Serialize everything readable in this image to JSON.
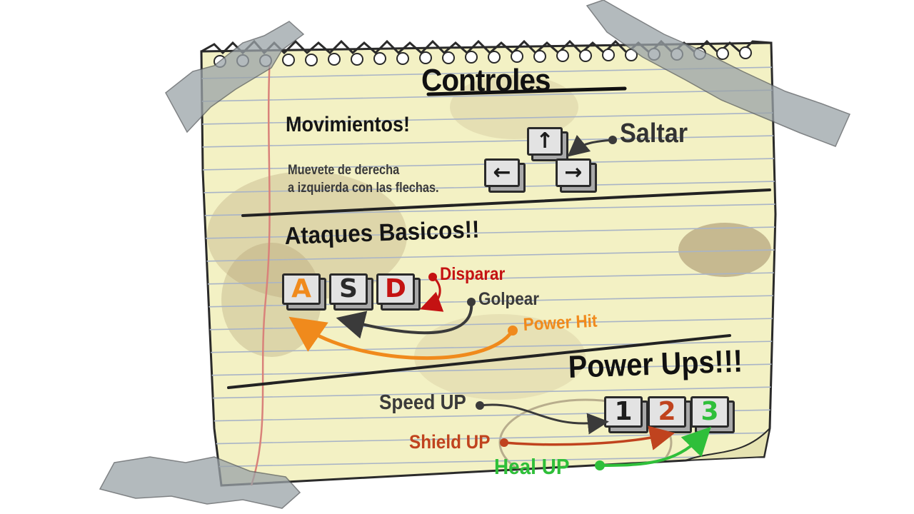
{
  "title": "Controles",
  "movement": {
    "heading": "Movimientos!",
    "description_line1": "Muevete de derecha",
    "description_line2": "a izquierda con las flechas.",
    "jump_label": "Saltar",
    "keys": [
      {
        "icon": "arrow-up-icon",
        "glyph": "↑"
      },
      {
        "icon": "arrow-left-icon",
        "glyph": "←"
      },
      {
        "icon": "arrow-right-icon",
        "glyph": "→"
      }
    ]
  },
  "attacks": {
    "heading": "Ataques Basicos!!",
    "keys": [
      {
        "letter": "A",
        "color": "#f08a1c"
      },
      {
        "letter": "S",
        "color": "#2a2a2a"
      },
      {
        "letter": "D",
        "color": "#c41212"
      }
    ],
    "shoot_label": "Disparar",
    "hit_label": "Golpear",
    "power_hit_label": "Power Hit"
  },
  "powerups": {
    "heading": "Power Ups!!!",
    "keys": [
      {
        "number": "1",
        "color": "#1c1c1c"
      },
      {
        "number": "2",
        "color": "#c0431e"
      },
      {
        "number": "3",
        "color": "#2fbf3a"
      }
    ],
    "speed_label": "Speed UP",
    "shield_label": "Shield UP",
    "heal_label": "Heal UP"
  },
  "colors": {
    "paper": "#f3f1c4",
    "rule_line": "#a9b4c6",
    "margin_line": "#d9827a",
    "tape": "#9aa3a8",
    "orange": "#f08a1c",
    "red": "#c41212",
    "green": "#2fbf3a",
    "dark": "#3a3a3a"
  }
}
